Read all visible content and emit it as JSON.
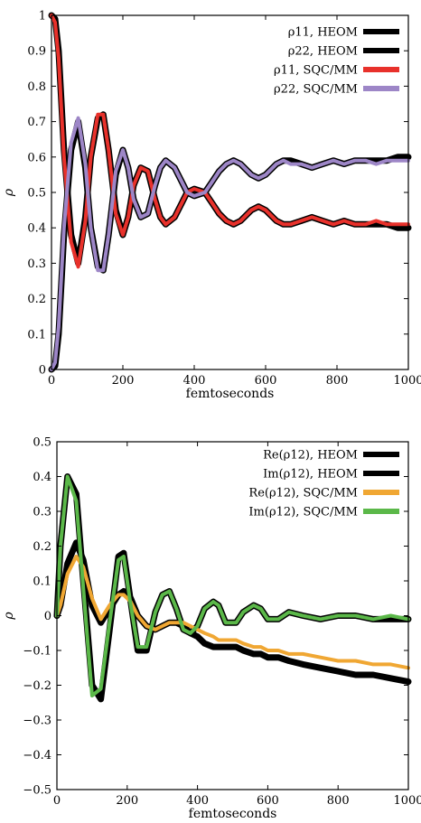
{
  "chart_data": [
    {
      "type": "line",
      "xlabel": "femtoseconds",
      "ylabel": "ρ",
      "xlim": [
        0,
        1000
      ],
      "ylim": [
        0,
        1
      ],
      "xticks": [
        "0",
        "200",
        "400",
        "600",
        "800",
        "1000"
      ],
      "yticks": [
        "0",
        "0.1",
        "0.2",
        "0.3",
        "0.4",
        "0.5",
        "0.6",
        "0.7",
        "0.8",
        "0.9",
        "1"
      ],
      "legend_position": "top-right",
      "grid": false,
      "x": [
        0,
        10,
        20,
        35,
        55,
        75,
        95,
        110,
        130,
        145,
        160,
        180,
        200,
        215,
        230,
        250,
        270,
        290,
        305,
        320,
        345,
        365,
        380,
        400,
        430,
        450,
        470,
        490,
        510,
        530,
        560,
        580,
        600,
        630,
        650,
        670,
        700,
        730,
        760,
        790,
        820,
        850,
        880,
        910,
        940,
        970,
        1000
      ],
      "series": [
        {
          "name": "ρ11, HEOM",
          "color": "#000000",
          "values": [
            1.0,
            0.99,
            0.9,
            0.62,
            0.38,
            0.3,
            0.43,
            0.6,
            0.71,
            0.72,
            0.62,
            0.45,
            0.38,
            0.43,
            0.52,
            0.57,
            0.56,
            0.48,
            0.43,
            0.41,
            0.43,
            0.47,
            0.5,
            0.51,
            0.5,
            0.47,
            0.44,
            0.42,
            0.41,
            0.42,
            0.45,
            0.46,
            0.45,
            0.42,
            0.41,
            0.41,
            0.42,
            0.43,
            0.42,
            0.41,
            0.42,
            0.41,
            0.41,
            0.41,
            0.41,
            0.4,
            0.4
          ]
        },
        {
          "name": "ρ22, HEOM",
          "color": "#000000",
          "values": [
            0.0,
            0.01,
            0.1,
            0.38,
            0.62,
            0.7,
            0.57,
            0.4,
            0.29,
            0.28,
            0.38,
            0.55,
            0.62,
            0.57,
            0.48,
            0.43,
            0.44,
            0.52,
            0.57,
            0.59,
            0.57,
            0.53,
            0.5,
            0.49,
            0.5,
            0.53,
            0.56,
            0.58,
            0.59,
            0.58,
            0.55,
            0.54,
            0.55,
            0.58,
            0.59,
            0.59,
            0.58,
            0.57,
            0.58,
            0.59,
            0.58,
            0.59,
            0.59,
            0.59,
            0.59,
            0.6,
            0.6
          ]
        },
        {
          "name": "ρ11, SQC/MM",
          "color": "#e8312b",
          "values": [
            1.0,
            0.98,
            0.88,
            0.6,
            0.36,
            0.29,
            0.42,
            0.6,
            0.72,
            0.72,
            0.62,
            0.44,
            0.38,
            0.43,
            0.52,
            0.57,
            0.56,
            0.48,
            0.43,
            0.41,
            0.43,
            0.47,
            0.5,
            0.51,
            0.5,
            0.47,
            0.44,
            0.42,
            0.41,
            0.42,
            0.45,
            0.46,
            0.45,
            0.42,
            0.41,
            0.41,
            0.42,
            0.43,
            0.42,
            0.41,
            0.42,
            0.41,
            0.41,
            0.42,
            0.41,
            0.41,
            0.41
          ]
        },
        {
          "name": "ρ22, SQC/MM",
          "color": "#9d86c7",
          "values": [
            0.0,
            0.02,
            0.12,
            0.4,
            0.64,
            0.71,
            0.58,
            0.4,
            0.28,
            0.28,
            0.38,
            0.56,
            0.62,
            0.57,
            0.48,
            0.43,
            0.44,
            0.52,
            0.57,
            0.59,
            0.57,
            0.53,
            0.5,
            0.49,
            0.5,
            0.53,
            0.56,
            0.58,
            0.59,
            0.58,
            0.55,
            0.54,
            0.55,
            0.58,
            0.59,
            0.58,
            0.58,
            0.57,
            0.58,
            0.59,
            0.58,
            0.59,
            0.59,
            0.58,
            0.59,
            0.59,
            0.59
          ]
        }
      ]
    },
    {
      "type": "line",
      "xlabel": "femtoseconds",
      "ylabel": "ρ",
      "xlim": [
        0,
        1000
      ],
      "ylim": [
        -0.5,
        0.5
      ],
      "xticks": [
        "0",
        "200",
        "400",
        "600",
        "800",
        "1000"
      ],
      "yticks": [
        "−0.5",
        "−0.4",
        "−0.3",
        "−0.2",
        "−0.1",
        "0",
        "0.1",
        "0.2",
        "0.3",
        "0.4",
        "0.5"
      ],
      "legend_position": "top-right",
      "grid": false,
      "x": [
        0,
        10,
        30,
        55,
        75,
        100,
        125,
        150,
        175,
        190,
        210,
        230,
        255,
        280,
        300,
        320,
        340,
        360,
        380,
        400,
        420,
        445,
        460,
        480,
        510,
        530,
        560,
        580,
        600,
        630,
        660,
        700,
        750,
        800,
        850,
        900,
        950,
        1000
      ],
      "series": [
        {
          "name": "Re(ρ12), HEOM",
          "color": "#000000",
          "values": [
            0.0,
            0.03,
            0.15,
            0.21,
            0.16,
            0.03,
            -0.02,
            0.02,
            0.06,
            0.07,
            0.05,
            0.0,
            -0.03,
            -0.04,
            -0.03,
            -0.02,
            -0.02,
            -0.03,
            -0.05,
            -0.06,
            -0.08,
            -0.09,
            -0.09,
            -0.09,
            -0.09,
            -0.1,
            -0.11,
            -0.11,
            -0.12,
            -0.12,
            -0.13,
            -0.14,
            -0.15,
            -0.16,
            -0.17,
            -0.17,
            -0.18,
            -0.19
          ]
        },
        {
          "name": "Im(ρ12), HEOM",
          "color": "#000000",
          "values": [
            0.0,
            0.2,
            0.4,
            0.35,
            0.1,
            -0.2,
            -0.24,
            -0.04,
            0.17,
            0.18,
            0.04,
            -0.1,
            -0.1,
            0.01,
            0.06,
            0.07,
            0.02,
            -0.04,
            -0.05,
            -0.03,
            0.02,
            0.04,
            0.03,
            -0.02,
            -0.02,
            0.01,
            0.03,
            0.02,
            -0.01,
            -0.01,
            0.01,
            0.0,
            -0.01,
            0.0,
            0.0,
            -0.01,
            -0.01,
            -0.01
          ]
        },
        {
          "name": "Re(ρ12), SQC/MM",
          "color": "#f0a733",
          "values": [
            0.0,
            0.03,
            0.12,
            0.17,
            0.14,
            0.05,
            -0.01,
            0.03,
            0.06,
            0.06,
            0.04,
            0.0,
            -0.03,
            -0.04,
            -0.03,
            -0.02,
            -0.02,
            -0.02,
            -0.03,
            -0.04,
            -0.05,
            -0.06,
            -0.07,
            -0.07,
            -0.07,
            -0.08,
            -0.09,
            -0.09,
            -0.1,
            -0.1,
            -0.11,
            -0.11,
            -0.12,
            -0.13,
            -0.13,
            -0.14,
            -0.14,
            -0.15
          ]
        },
        {
          "name": "Im(ρ12), SQC/MM",
          "color": "#5bb849",
          "values": [
            0.0,
            0.2,
            0.4,
            0.33,
            0.08,
            -0.23,
            -0.21,
            -0.02,
            0.16,
            0.17,
            0.03,
            -0.09,
            -0.09,
            0.01,
            0.06,
            0.07,
            0.02,
            -0.04,
            -0.05,
            -0.03,
            0.02,
            0.04,
            0.03,
            -0.02,
            -0.02,
            0.01,
            0.03,
            0.02,
            -0.01,
            -0.01,
            0.01,
            0.0,
            -0.01,
            0.0,
            0.0,
            -0.01,
            0.0,
            -0.01
          ]
        }
      ]
    }
  ]
}
